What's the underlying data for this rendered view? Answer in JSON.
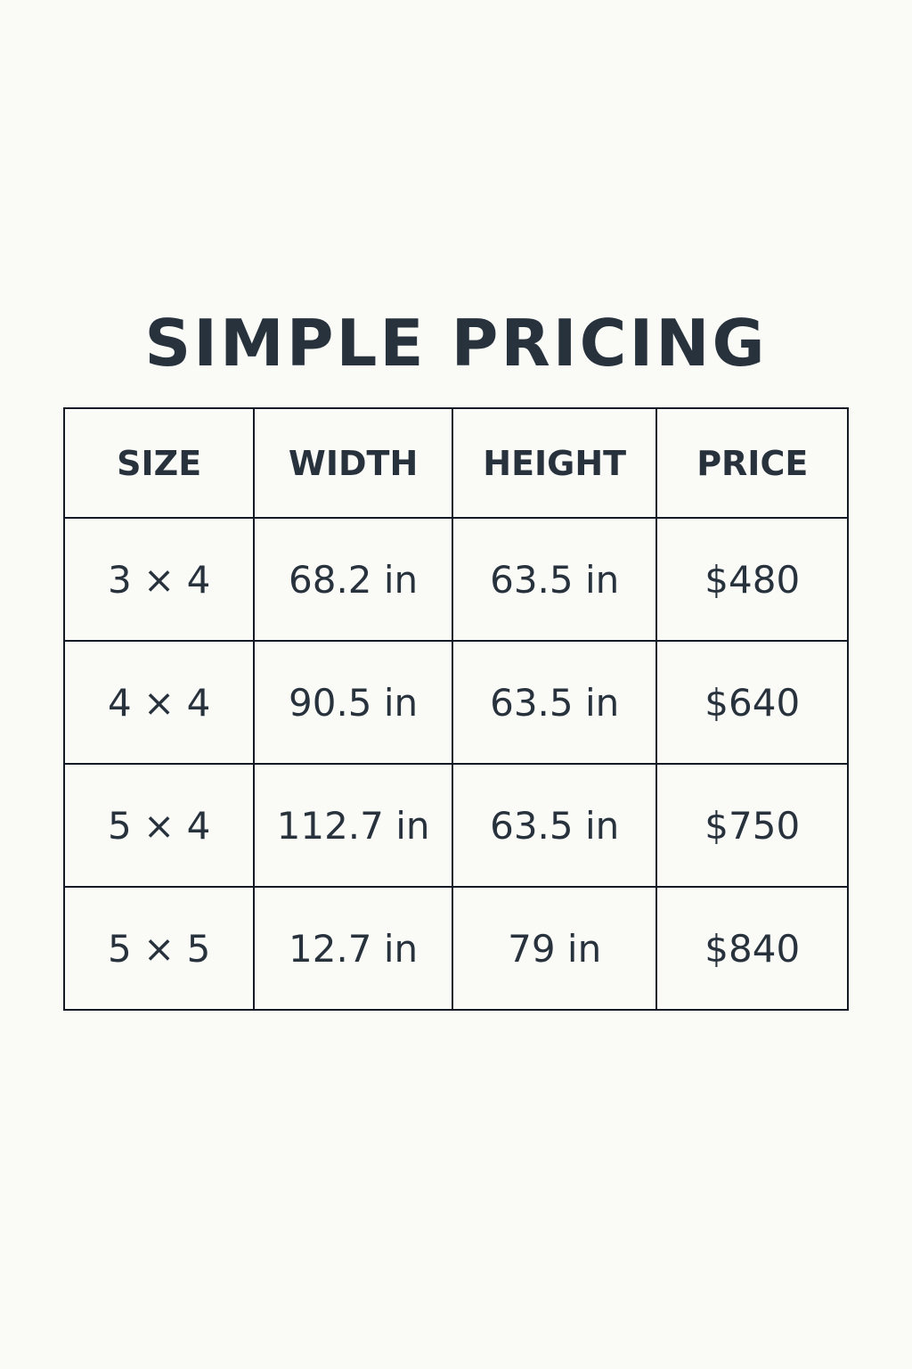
{
  "title": "SIMPLE PRICING",
  "table": {
    "headers": [
      "SIZE",
      "WIDTH",
      "HEIGHT",
      "PRICE"
    ],
    "rows": [
      [
        "3 × 4",
        "68.2 in",
        "63.5 in",
        "$480"
      ],
      [
        "4 × 4",
        "90.5 in",
        "63.5 in",
        "$640"
      ],
      [
        "5 × 4",
        "112.7 in",
        "63.5 in",
        "$750"
      ],
      [
        "5 × 5",
        "12.7 in",
        "79 in",
        "$840"
      ]
    ]
  },
  "colors": {
    "text": "#27323d",
    "background": "#fafaf7",
    "border": "#141b27"
  }
}
